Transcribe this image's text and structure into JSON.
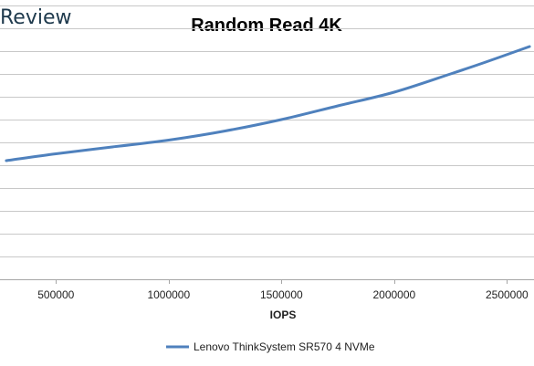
{
  "brand": {
    "text": "Review"
  },
  "chart_data": {
    "type": "line",
    "title": "Random Read 4K",
    "xlabel": "IOPS",
    "ylabel": "",
    "x_ticks": [
      500000,
      1000000,
      1500000,
      2000000,
      2500000
    ],
    "x_tick_labels": [
      "500000",
      "1000000",
      "1500000",
      "2000000",
      "2500000"
    ],
    "xlim": [
      260000,
      2620000
    ],
    "ylim": [
      0,
      12
    ],
    "y_gridlines": 12,
    "y_tick_labels_visible": false,
    "grid": "horizontal",
    "legend": "bottom-center",
    "series": [
      {
        "name": "Lenovo ThinkSystem SR570 4 NVMe",
        "color": "#4f81bd",
        "x": [
          280000,
          500000,
          750000,
          1000000,
          1250000,
          1500000,
          1750000,
          2000000,
          2250000,
          2400000,
          2600000
        ],
        "y": [
          5.2,
          5.5,
          5.8,
          6.1,
          6.5,
          7.0,
          7.6,
          8.2,
          9.0,
          9.5,
          10.2
        ]
      }
    ]
  }
}
